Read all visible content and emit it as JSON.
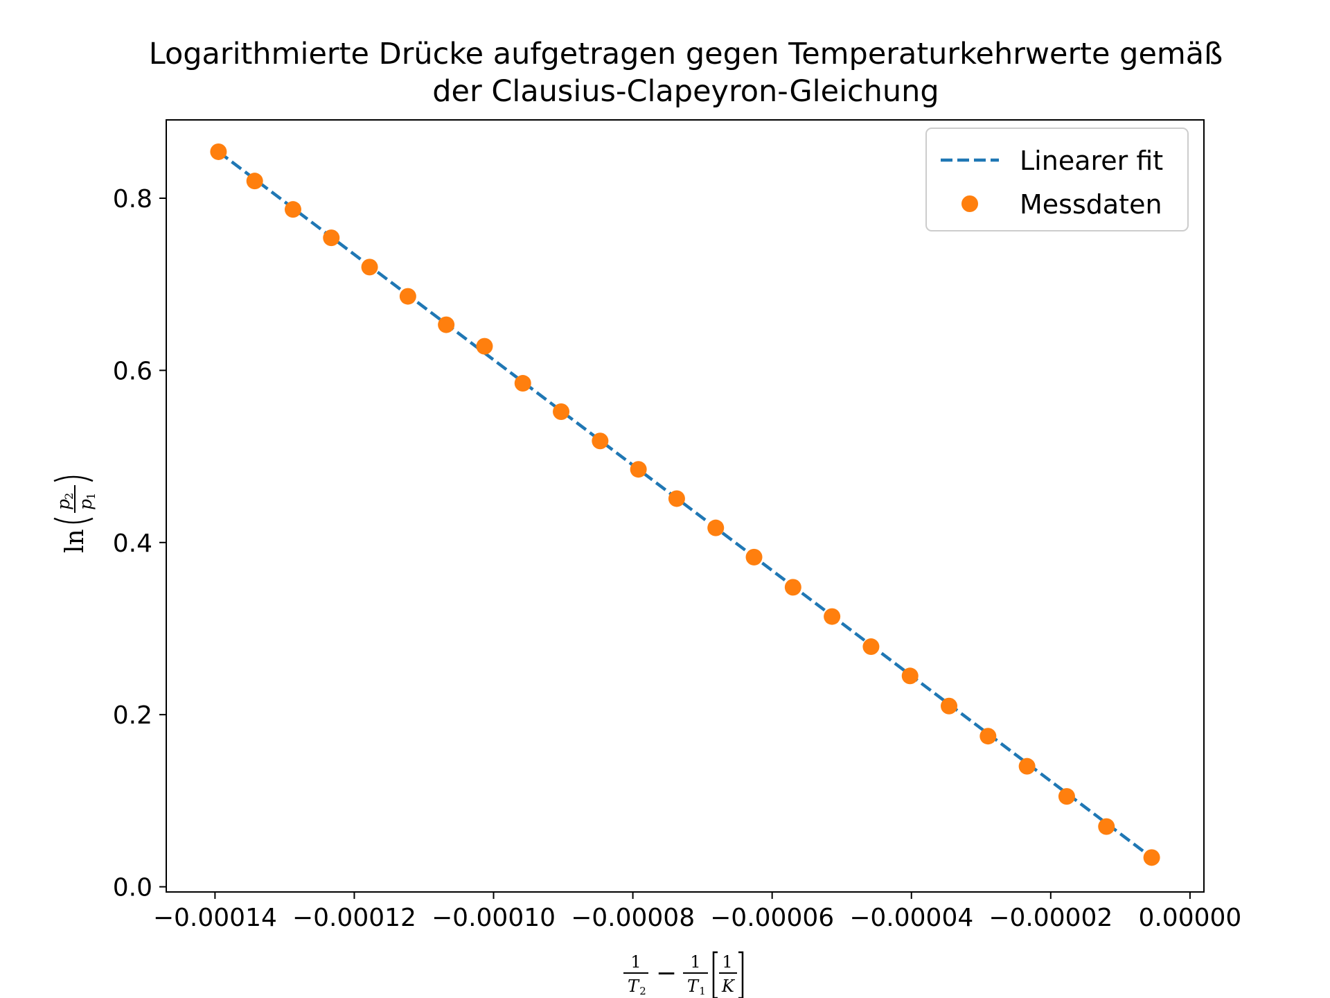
{
  "chart_data": {
    "type": "scatter",
    "title_lines": [
      "Logarithmierte Drücke aufgetragen gegen Temperaturkehrwerte gemäß",
      "der Clausius-Clapeyron-Gleichung"
    ],
    "xlabel": {
      "frac1_num": "1",
      "frac1_den": "T",
      "frac1_sub": "2",
      "minus": "−",
      "frac2_num": "1",
      "frac2_den": "T",
      "frac2_sub": "1",
      "unit_num": "1",
      "unit_den": "K"
    },
    "ylabel": {
      "fn": "ln",
      "num": "p",
      "num_sub": "2",
      "den": "p",
      "den_sub": "1"
    },
    "xlim": [
      -0.000147,
      2e-06
    ],
    "ylim": [
      -0.006,
      0.891
    ],
    "x_ticks": [
      -0.00014,
      -0.00012,
      -0.0001,
      -8e-05,
      -6e-05,
      -4e-05,
      -2e-05,
      0.0
    ],
    "x_tick_labels": [
      "−0.00014",
      "−0.00012",
      "−0.00010",
      "−0.00008",
      "−0.00006",
      "−0.00004",
      "−0.00002",
      "0.00000"
    ],
    "y_ticks": [
      0.0,
      0.2,
      0.4,
      0.6,
      0.8
    ],
    "y_tick_labels": [
      "0.0",
      "0.2",
      "0.4",
      "0.6",
      "0.8"
    ],
    "legend_position": "upper-right",
    "series": [
      {
        "name": "Linearer fit",
        "kind": "line",
        "style": "dashed",
        "color": "#1f77b4",
        "x": [
          -0.0001395,
          -5.5e-06
        ],
        "y": [
          0.854,
          0.034
        ]
      },
      {
        "name": "Messdaten",
        "kind": "scatter",
        "color": "#ff7f0e",
        "x": [
          -0.0001395,
          -0.0001343,
          -0.0001288,
          -0.0001233,
          -0.0001178,
          -0.0001123,
          -0.0001068,
          -0.0001013,
          -9.58e-05,
          -9.03e-05,
          -8.47e-05,
          -7.92e-05,
          -7.37e-05,
          -6.81e-05,
          -6.26e-05,
          -5.7e-05,
          -5.14e-05,
          -4.58e-05,
          -4.02e-05,
          -3.46e-05,
          -2.9e-05,
          -2.34e-05,
          -1.77e-05,
          -1.2e-05,
          -5.5e-06
        ],
        "y": [
          0.854,
          0.82,
          0.787,
          0.754,
          0.72,
          0.686,
          0.653,
          0.628,
          0.585,
          0.552,
          0.518,
          0.485,
          0.451,
          0.417,
          0.383,
          0.348,
          0.314,
          0.279,
          0.245,
          0.21,
          0.175,
          0.14,
          0.105,
          0.07,
          0.034
        ]
      }
    ]
  }
}
